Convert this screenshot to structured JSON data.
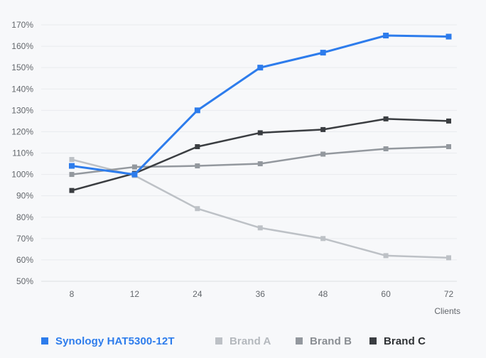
{
  "chart_data": {
    "type": "line",
    "x_categories": [
      "8",
      "12",
      "24",
      "36",
      "48",
      "60",
      "72"
    ],
    "xlabel": "Clients",
    "y_ticks": [
      "170%",
      "160%",
      "150%",
      "140%",
      "130%",
      "120%",
      "110%",
      "100%",
      "90%",
      "80%",
      "70%",
      "60%",
      "50%"
    ],
    "ylim": [
      50,
      170
    ],
    "grid": true,
    "legend_position": "bottom",
    "marker": "square",
    "colors": {
      "background": "#f7f8fa",
      "gridline": "#e9ebee",
      "axis_line": "#dcdfe3",
      "tick_label": "#63676c"
    },
    "series": [
      {
        "name": "Synology HAT5300-12T",
        "color": "#2d7cec",
        "label_color": "#2d7cec",
        "values": [
          104,
          100,
          130,
          150,
          157,
          165,
          164.5
        ]
      },
      {
        "name": "Brand A",
        "color": "#bdc1c6",
        "label_color": "#b4b8bd",
        "values": [
          107,
          99.5,
          84,
          75,
          70,
          62,
          61
        ]
      },
      {
        "name": "Brand B",
        "color": "#93989e",
        "label_color": "#8a8e93",
        "values": [
          100,
          103.5,
          104,
          105,
          109.5,
          112,
          113
        ]
      },
      {
        "name": "Brand C",
        "color": "#3a3d41",
        "label_color": "#2e3134",
        "values": [
          92.5,
          100.5,
          113,
          119.5,
          121,
          126,
          125
        ]
      }
    ]
  }
}
